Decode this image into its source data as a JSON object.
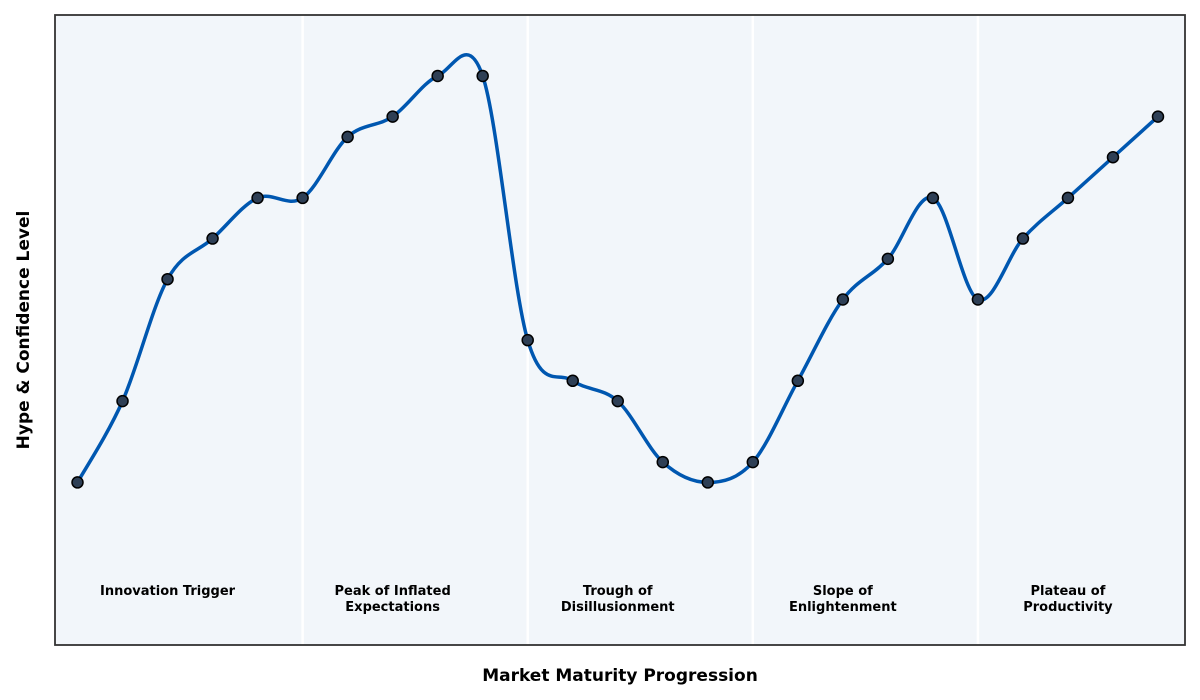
{
  "chart_data": {
    "type": "line",
    "xlabel": "Market Maturity Progression",
    "ylabel": "Hype & Confidence Level",
    "xlim": [
      -0.5,
      24.6
    ],
    "ylim": [
      -4,
      27
    ],
    "grid": false,
    "colors": {
      "line": "#0057b0",
      "marker_fill": "#2e3f55",
      "marker_edge": "#000000",
      "background": "#f2f6fa",
      "divider": "#ffffff"
    },
    "phase_boundaries": [
      5,
      10,
      15,
      20
    ],
    "phases": [
      {
        "lines": [
          "Innovation Trigger"
        ],
        "x": 2
      },
      {
        "lines": [
          "Peak of Inflated",
          "Expectations"
        ],
        "x": 7
      },
      {
        "lines": [
          "Trough of",
          "Disillusionment"
        ],
        "x": 12
      },
      {
        "lines": [
          "Slope of",
          "Enlightenment"
        ],
        "x": 17
      },
      {
        "lines": [
          "Plateau of",
          "Productivity"
        ],
        "x": 22
      }
    ],
    "series": [
      {
        "x": [
          0,
          1,
          2,
          3,
          4,
          5,
          6,
          7,
          8,
          9,
          10,
          11,
          12,
          13,
          14,
          15,
          16,
          17,
          18,
          19,
          20,
          21,
          22,
          23,
          24
        ],
        "y": [
          4,
          8,
          14,
          16,
          18,
          18,
          21,
          22,
          24,
          24,
          11,
          9,
          8,
          5,
          4,
          5,
          9,
          13,
          15,
          18,
          13,
          16,
          18,
          20,
          22
        ]
      }
    ]
  }
}
